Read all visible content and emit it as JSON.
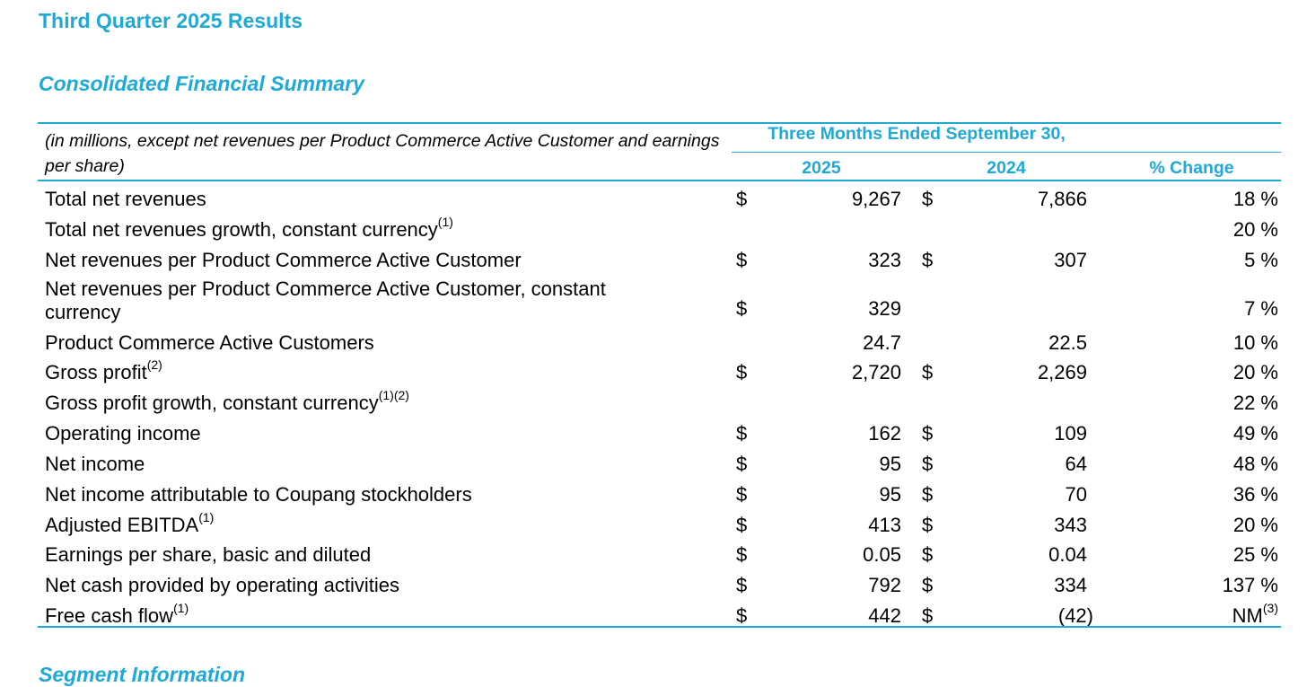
{
  "title": "Third Quarter 2025 Results",
  "subtitle": "Consolidated Financial Summary",
  "table": {
    "units_note": "(in millions, except net revenues per Product Commerce Active Customer and earnings per share)",
    "period_header": "Three Months Ended September 30,",
    "col_2025": "2025",
    "col_2024": "2024",
    "col_change": "% Change",
    "rows": [
      {
        "label": "Total net revenues",
        "sup": "",
        "cur1": "$",
        "v2025": "9,267",
        "cur2": "$",
        "v2024": "7,866",
        "change": "18 %",
        "change_sup": ""
      },
      {
        "label": "Total net revenues growth, constant currency",
        "sup": "(1)",
        "cur1": "",
        "v2025": "",
        "cur2": "",
        "v2024": "",
        "change": "20 %",
        "change_sup": ""
      },
      {
        "label": "Net revenues per Product Commerce Active Customer",
        "sup": "",
        "cur1": "$",
        "v2025": "323",
        "cur2": "$",
        "v2024": "307",
        "change": "5 %",
        "change_sup": ""
      },
      {
        "label": "Net revenues per Product Commerce Active Customer, constant currency",
        "sup": "",
        "cur1": "$",
        "v2025": "329",
        "cur2": "",
        "v2024": "",
        "change": "7 %",
        "change_sup": ""
      },
      {
        "label": "Product Commerce Active Customers",
        "sup": "",
        "cur1": "",
        "v2025": "24.7",
        "cur2": "",
        "v2024": "22.5",
        "change": "10 %",
        "change_sup": ""
      },
      {
        "label": "Gross profit",
        "sup": "(2)",
        "cur1": "$",
        "v2025": "2,720",
        "cur2": "$",
        "v2024": "2,269",
        "change": "20 %",
        "change_sup": ""
      },
      {
        "label": "Gross profit growth, constant currency",
        "sup": "(1)(2)",
        "cur1": "",
        "v2025": "",
        "cur2": "",
        "v2024": "",
        "change": "22 %",
        "change_sup": ""
      },
      {
        "label": "Operating income",
        "sup": "",
        "cur1": "$",
        "v2025": "162",
        "cur2": "$",
        "v2024": "109",
        "change": "49 %",
        "change_sup": ""
      },
      {
        "label": "Net income",
        "sup": "",
        "cur1": "$",
        "v2025": "95",
        "cur2": "$",
        "v2024": "64",
        "change": "48 %",
        "change_sup": ""
      },
      {
        "label": "Net income attributable to Coupang stockholders",
        "sup": "",
        "cur1": "$",
        "v2025": "95",
        "cur2": "$",
        "v2024": "70",
        "change": "36 %",
        "change_sup": ""
      },
      {
        "label": "Adjusted EBITDA",
        "sup": "(1)",
        "cur1": "$",
        "v2025": "413",
        "cur2": "$",
        "v2024": "343",
        "change": "20 %",
        "change_sup": ""
      },
      {
        "label": "Earnings per share, basic and diluted",
        "sup": "",
        "cur1": "$",
        "v2025": "0.05",
        "cur2": "$",
        "v2024": "0.04",
        "change": "25 %",
        "change_sup": ""
      },
      {
        "label": "Net cash provided by operating activities",
        "sup": "",
        "cur1": "$",
        "v2025": "792",
        "cur2": "$",
        "v2024": "334",
        "change": "137 %",
        "change_sup": ""
      },
      {
        "label": "Free cash flow",
        "sup": "(1)",
        "cur1": "$",
        "v2025": "442",
        "cur2": "$",
        "v2024": "(42)",
        "change": "NM",
        "change_sup": "(3)"
      }
    ]
  },
  "next_section": "Segment Information",
  "accent_color": "#1fa9d6"
}
